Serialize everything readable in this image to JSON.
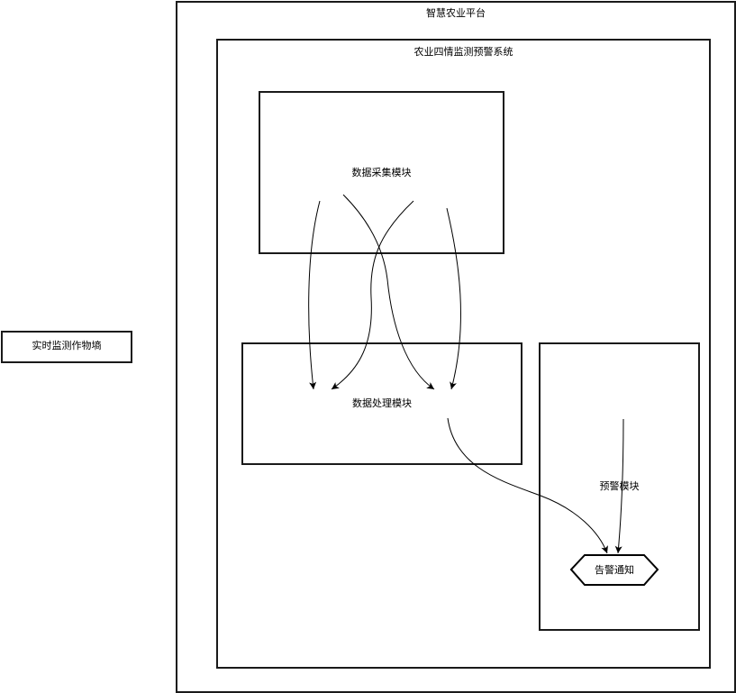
{
  "external_entity": {
    "label": "实时监测作物墒"
  },
  "platform": {
    "title": "智慧农业平台"
  },
  "system": {
    "title": "农业四情监测预警系统"
  },
  "modules": {
    "collection": {
      "label": "数据采集模块"
    },
    "processing": {
      "label": "数据处理模块"
    },
    "warning": {
      "label": "预警模块"
    }
  },
  "alert_node": {
    "label": "告警通知"
  }
}
